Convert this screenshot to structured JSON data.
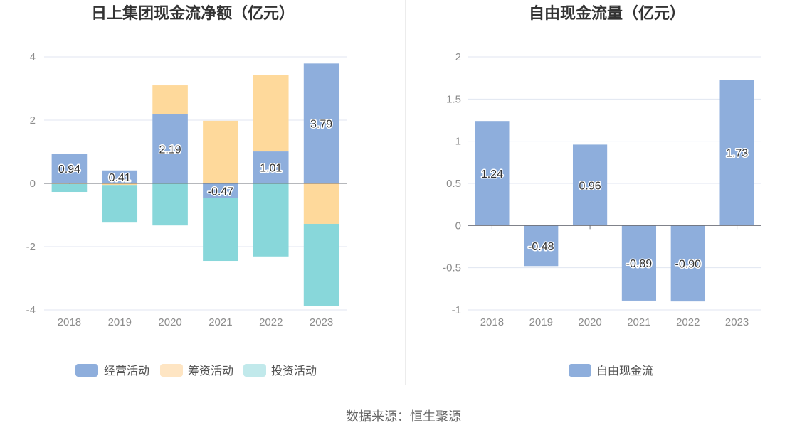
{
  "footer": {
    "source": "数据来源：恒生聚源"
  },
  "chart_data": [
    {
      "type": "bar",
      "stacked": true,
      "title": "日上集团现金流净额（亿元）",
      "categories": [
        "2018",
        "2019",
        "2020",
        "2021",
        "2022",
        "2023"
      ],
      "series": [
        {
          "name": "经营活动",
          "values": [
            0.94,
            0.41,
            2.19,
            -0.47,
            1.01,
            3.79
          ],
          "data_labels": [
            "0.94",
            "0.41",
            "2.19",
            "-0.47",
            "1.01",
            "3.79"
          ],
          "color": "#8eaedc",
          "legend_color": "#8eaedc"
        },
        {
          "name": "筹资活动",
          "values": [
            -0.02,
            -0.05,
            0.91,
            1.98,
            2.41,
            -1.28
          ],
          "color": "#fed99b",
          "legend_color": "#fee5c3"
        },
        {
          "name": "投资活动",
          "values": [
            -0.25,
            -1.19,
            -1.33,
            -1.98,
            -2.31,
            -2.59
          ],
          "color": "#88d7da",
          "legend_color": "#c1e9eb"
        }
      ],
      "xlabel": "",
      "ylabel": "",
      "ylim": [
        -4,
        4
      ],
      "yticks": [
        4,
        2,
        0,
        -2,
        -4
      ],
      "grid": true,
      "legend": "bottom"
    },
    {
      "type": "bar",
      "title": "自由现金流量（亿元）",
      "categories": [
        "2018",
        "2019",
        "2020",
        "2021",
        "2022",
        "2023"
      ],
      "series": [
        {
          "name": "自由现金流",
          "values": [
            1.24,
            -0.48,
            0.96,
            -0.89,
            -0.9,
            1.73
          ],
          "data_labels": [
            "1.24",
            "-0.48",
            "0.96",
            "-0.89",
            "-0.90",
            "1.73"
          ],
          "color": "#8eaedc",
          "legend_color": "#8eaedc"
        }
      ],
      "xlabel": "",
      "ylabel": "",
      "ylim": [
        -1,
        2
      ],
      "yticks": [
        2,
        1.5,
        1,
        0.5,
        0,
        -0.5,
        -1
      ],
      "grid": true,
      "legend": "bottom"
    }
  ]
}
